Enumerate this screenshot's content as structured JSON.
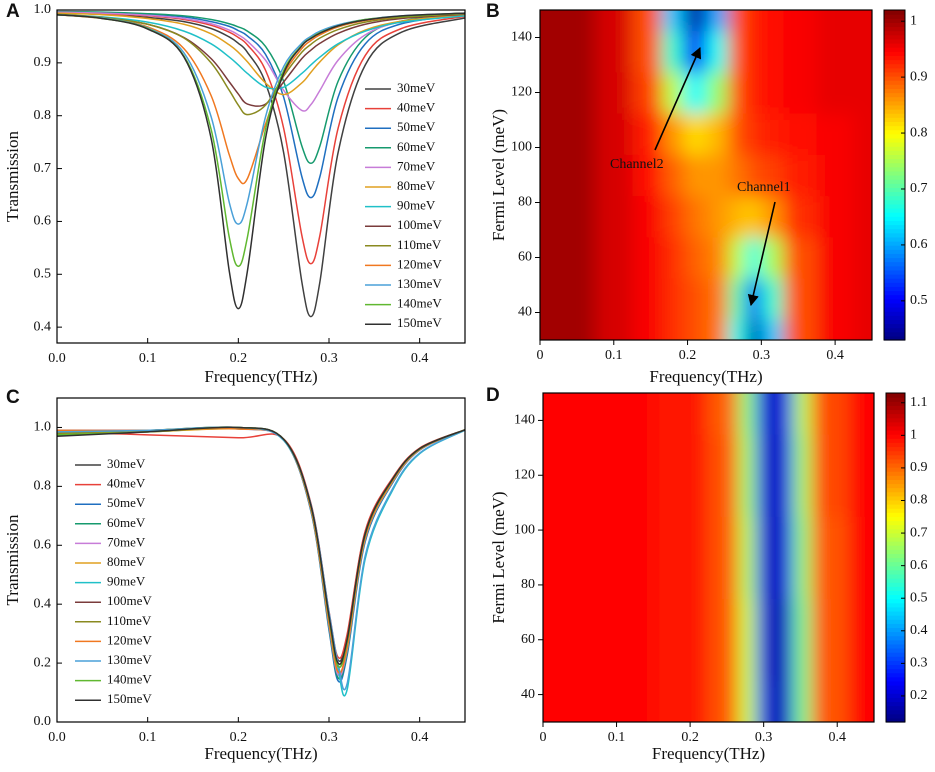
{
  "chart_data": [
    {
      "type": "line",
      "panel": "A",
      "xlabel": "Frequency(THz)",
      "ylabel": "Transmission",
      "xlim": [
        0,
        0.45
      ],
      "xticks": [
        {
          "value": 0,
          "label": "0.0"
        },
        0.1,
        0.2,
        0.3,
        0.4
      ],
      "ylim": [
        0.37,
        1.0
      ],
      "yticks": [
        0.4,
        0.5,
        0.6,
        0.7,
        0.8,
        0.9,
        {
          "value": 1,
          "label": "1.0"
        }
      ],
      "legend": "right",
      "x": [
        0,
        0.05,
        0.1,
        0.14,
        0.17,
        0.19,
        0.2,
        0.21,
        0.23,
        0.25,
        0.27,
        0.28,
        0.29,
        0.31,
        0.34,
        0.38,
        0.45
      ],
      "series": [
        {
          "name": "30meV",
          "color": "#404040",
          "values": [
            0.994,
            0.992,
            0.986,
            0.978,
            0.965,
            0.949,
            0.937,
            0.92,
            0.862,
            0.73,
            0.486,
            0.42,
            0.486,
            0.73,
            0.896,
            0.958,
            0.985
          ]
        },
        {
          "name": "40meV",
          "color": "#e8413a",
          "values": [
            0.995,
            0.993,
            0.989,
            0.982,
            0.971,
            0.958,
            0.948,
            0.934,
            0.886,
            0.776,
            0.574,
            0.52,
            0.574,
            0.776,
            0.914,
            0.965,
            0.988
          ]
        },
        {
          "name": "50meV",
          "color": "#1f6fc0",
          "values": [
            0.996,
            0.995,
            0.992,
            0.987,
            0.978,
            0.969,
            0.961,
            0.951,
            0.916,
            0.835,
            0.685,
            0.645,
            0.685,
            0.835,
            0.936,
            0.974,
            0.991
          ]
        },
        {
          "name": "60meV",
          "color": "#169a6e",
          "values": [
            0.997,
            0.996,
            0.993,
            0.989,
            0.982,
            0.974,
            0.968,
            0.96,
            0.931,
            0.865,
            0.743,
            0.71,
            0.743,
            0.865,
            0.948,
            0.979,
            0.992
          ]
        },
        {
          "name": "70meV",
          "color": "#c77cd8",
          "values": [
            0.996,
            0.994,
            0.99,
            0.984,
            0.974,
            0.962,
            0.953,
            0.941,
            0.905,
            0.848,
            0.81,
            0.821,
            0.848,
            0.905,
            0.953,
            0.978,
            0.991
          ]
        },
        {
          "name": "80meV",
          "color": "#e0a020",
          "values": [
            0.994,
            0.991,
            0.984,
            0.973,
            0.955,
            0.934,
            0.92,
            0.902,
            0.862,
            0.84,
            0.862,
            0.882,
            0.902,
            0.934,
            0.962,
            0.979,
            0.991
          ]
        },
        {
          "name": "90meV",
          "color": "#20c0c8",
          "values": [
            0.991,
            0.987,
            0.977,
            0.96,
            0.936,
            0.911,
            0.896,
            0.88,
            0.854,
            0.854,
            0.88,
            0.896,
            0.911,
            0.936,
            0.96,
            0.977,
            0.989
          ]
        },
        {
          "name": "100meV",
          "color": "#7a3b3b",
          "values": [
            0.991,
            0.985,
            0.973,
            0.948,
            0.908,
            0.864,
            0.841,
            0.822,
            0.822,
            0.864,
            0.908,
            0.924,
            0.937,
            0.956,
            0.973,
            0.984,
            0.992
          ]
        },
        {
          "name": "110meV",
          "color": "#8a8a20",
          "values": [
            0.992,
            0.986,
            0.973,
            0.947,
            0.9,
            0.848,
            0.82,
            0.802,
            0.82,
            0.875,
            0.92,
            0.935,
            0.947,
            0.963,
            0.977,
            0.986,
            0.993
          ]
        },
        {
          "name": "120meV",
          "color": "#f07820",
          "values": [
            0.991,
            0.984,
            0.968,
            0.927,
            0.838,
            0.726,
            0.681,
            0.681,
            0.784,
            0.878,
            0.927,
            0.942,
            0.953,
            0.968,
            0.98,
            0.988,
            0.994
          ]
        },
        {
          "name": "130meV",
          "color": "#4aa0d8",
          "values": [
            0.991,
            0.985,
            0.966,
            0.919,
            0.798,
            0.636,
            0.595,
            0.636,
            0.798,
            0.893,
            0.937,
            0.95,
            0.96,
            0.972,
            0.982,
            0.989,
            0.994
          ]
        },
        {
          "name": "140meV",
          "color": "#60b830",
          "values": [
            0.991,
            0.984,
            0.965,
            0.913,
            0.774,
            0.57,
            0.515,
            0.57,
            0.774,
            0.885,
            0.933,
            0.947,
            0.957,
            0.97,
            0.982,
            0.988,
            0.994
          ]
        },
        {
          "name": "150meV",
          "color": "#303030",
          "values": [
            0.991,
            0.984,
            0.964,
            0.911,
            0.757,
            0.506,
            0.435,
            0.506,
            0.757,
            0.88,
            0.932,
            0.946,
            0.956,
            0.97,
            0.981,
            0.989,
            0.994
          ]
        }
      ]
    },
    {
      "type": "heatmap",
      "panel": "B",
      "xlabel": "Frequency(THz)",
      "ylabel": "Fermi Level (meV)",
      "xlim": [
        0,
        0.45
      ],
      "xticks": [
        0,
        0.1,
        0.2,
        0.3,
        0.4
      ],
      "ylim": [
        30,
        150
      ],
      "yticks": [
        40,
        60,
        80,
        100,
        120,
        140
      ],
      "colormap": "jet",
      "zlim": [
        0.43,
        1.02
      ],
      "zticks": [
        0.5,
        0.6,
        0.7,
        0.8,
        0.9,
        1
      ],
      "annotations": [
        "Channel2",
        "Channel1"
      ],
      "x": [
        0,
        0.05,
        0.1,
        0.15,
        0.18,
        0.21,
        0.24,
        0.27,
        0.29,
        0.31,
        0.35,
        0.4,
        0.45
      ],
      "y": [
        30,
        45,
        60,
        75,
        90,
        105,
        120,
        135,
        150
      ],
      "z": [
        [
          1.0,
          1.0,
          0.97,
          0.95,
          0.92,
          0.9,
          0.88,
          0.66,
          0.45,
          0.62,
          0.9,
          0.95,
          0.96
        ],
        [
          1.0,
          1.0,
          0.97,
          0.95,
          0.92,
          0.9,
          0.88,
          0.7,
          0.52,
          0.68,
          0.9,
          0.95,
          0.96
        ],
        [
          1.0,
          1.0,
          0.97,
          0.95,
          0.92,
          0.89,
          0.87,
          0.76,
          0.66,
          0.75,
          0.9,
          0.95,
          0.96
        ],
        [
          1.0,
          1.0,
          0.97,
          0.95,
          0.91,
          0.88,
          0.86,
          0.84,
          0.83,
          0.86,
          0.92,
          0.95,
          0.96
        ],
        [
          1.0,
          1.0,
          0.97,
          0.94,
          0.89,
          0.86,
          0.86,
          0.88,
          0.9,
          0.91,
          0.93,
          0.95,
          0.96
        ],
        [
          1.0,
          1.0,
          0.97,
          0.93,
          0.86,
          0.82,
          0.84,
          0.9,
          0.92,
          0.93,
          0.94,
          0.95,
          0.96
        ],
        [
          1.0,
          1.0,
          0.97,
          0.91,
          0.76,
          0.65,
          0.74,
          0.9,
          0.93,
          0.94,
          0.95,
          0.96,
          0.96
        ],
        [
          1.0,
          1.0,
          0.97,
          0.9,
          0.68,
          0.5,
          0.66,
          0.9,
          0.93,
          0.94,
          0.95,
          0.96,
          0.96
        ],
        [
          1.0,
          1.0,
          0.97,
          0.9,
          0.62,
          0.45,
          0.6,
          0.9,
          0.93,
          0.94,
          0.95,
          0.96,
          0.96
        ]
      ]
    },
    {
      "type": "line",
      "panel": "C",
      "xlabel": "Frequency(THz)",
      "ylabel": "Transmission",
      "xlim": [
        0,
        0.45
      ],
      "xticks": [
        {
          "value": 0,
          "label": "0.0"
        },
        0.1,
        0.2,
        0.3,
        0.4
      ],
      "ylim": [
        0,
        1.1
      ],
      "yticks": [
        {
          "value": 0,
          "label": "0.0"
        },
        0.2,
        0.4,
        0.6,
        0.8,
        {
          "value": 1,
          "label": "1.0"
        }
      ],
      "legend": "left",
      "x": [
        0,
        0.1,
        0.2,
        0.25,
        0.28,
        0.3,
        0.31,
        0.32,
        0.34,
        0.37,
        0.4,
        0.45
      ],
      "series": [
        {
          "name": "30meV",
          "color": "#404040",
          "values": [
            0.99,
            0.99,
            1.0,
            0.96,
            0.739,
            0.368,
            0.21,
            0.289,
            0.645,
            0.826,
            0.929,
            0.992
          ]
        },
        {
          "name": "40meV",
          "color": "#e8413a",
          "values": [
            0.985,
            0.975,
            0.965,
            0.961,
            0.743,
            0.376,
            0.22,
            0.298,
            0.649,
            0.828,
            0.93,
            0.992
          ]
        },
        {
          "name": "50meV",
          "color": "#1f6fc0",
          "values": [
            0.99,
            0.99,
            0.995,
            0.957,
            0.716,
            0.312,
            0.14,
            0.226,
            0.613,
            0.811,
            0.923,
            0.991
          ]
        },
        {
          "name": "60meV",
          "color": "#169a6e",
          "values": [
            0.975,
            0.985,
            0.995,
            0.958,
            0.72,
            0.32,
            0.15,
            0.235,
            0.618,
            0.813,
            0.924,
            0.992
          ]
        },
        {
          "name": "70meV",
          "color": "#c77cd8",
          "values": [
            0.99,
            0.99,
            0.995,
            0.958,
            0.723,
            0.328,
            0.16,
            0.244,
            0.622,
            0.815,
            0.924,
            0.992
          ]
        },
        {
          "name": "80meV",
          "color": "#e0a020",
          "values": [
            0.98,
            0.985,
            0.995,
            0.959,
            0.726,
            0.336,
            0.17,
            0.253,
            0.627,
            0.817,
            0.925,
            0.992
          ]
        },
        {
          "name": "90meV",
          "color": "#20c0c8",
          "values": [
            0.985,
            0.99,
            1.0,
            0.956,
            0.733,
            0.359,
            0.181,
            0.11,
            0.555,
            0.786,
            0.911,
            0.991
          ]
        },
        {
          "name": "100meV",
          "color": "#7a3b3b",
          "values": [
            0.99,
            0.99,
            1.0,
            0.96,
            0.733,
            0.352,
            0.19,
            0.271,
            0.636,
            0.822,
            0.927,
            0.992
          ]
        },
        {
          "name": "110meV",
          "color": "#8a8a20",
          "values": [
            0.98,
            0.99,
            1.0,
            0.96,
            0.736,
            0.36,
            0.2,
            0.28,
            0.64,
            0.824,
            0.928,
            0.992
          ]
        },
        {
          "name": "120meV",
          "color": "#f07820",
          "values": [
            0.99,
            0.99,
            0.995,
            0.959,
            0.726,
            0.336,
            0.17,
            0.253,
            0.627,
            0.817,
            0.925,
            0.992
          ]
        },
        {
          "name": "130meV",
          "color": "#4aa0d8",
          "values": [
            0.985,
            0.99,
            1.0,
            0.957,
            0.739,
            0.374,
            0.2,
            0.13,
            0.565,
            0.791,
            0.913,
            0.991
          ]
        },
        {
          "name": "140meV",
          "color": "#60b830",
          "values": [
            0.975,
            0.985,
            1.0,
            0.96,
            0.733,
            0.352,
            0.19,
            0.271,
            0.636,
            0.822,
            0.927,
            0.992
          ]
        },
        {
          "name": "150meV",
          "color": "#303030",
          "values": [
            0.97,
            0.985,
            1.0,
            0.96,
            0.736,
            0.36,
            0.2,
            0.28,
            0.64,
            0.824,
            0.928,
            0.992
          ]
        }
      ]
    },
    {
      "type": "heatmap",
      "panel": "D",
      "xlabel": "Frequency(THz)",
      "ylabel": "Fermi Level (meV)",
      "xlim": [
        0,
        0.45
      ],
      "xticks": [
        0,
        0.1,
        0.2,
        0.3,
        0.4
      ],
      "ylim": [
        30,
        150
      ],
      "yticks": [
        40,
        60,
        80,
        100,
        120,
        140
      ],
      "colormap": "jet",
      "zlim": [
        0.12,
        1.13
      ],
      "zticks": [
        0.2,
        0.3,
        0.4,
        0.5,
        0.6,
        0.7,
        0.8,
        0.9,
        1,
        1.1
      ],
      "x": [
        0,
        0.1,
        0.2,
        0.25,
        0.28,
        0.3,
        0.31,
        0.32,
        0.33,
        0.35,
        0.38,
        0.45
      ],
      "y": [
        30,
        60,
        90,
        120,
        150
      ],
      "z": [
        [
          1.0,
          1.0,
          0.98,
          0.92,
          0.7,
          0.32,
          0.16,
          0.13,
          0.22,
          0.62,
          0.92,
          1.0
        ],
        [
          1.0,
          1.0,
          0.98,
          0.92,
          0.7,
          0.3,
          0.14,
          0.13,
          0.22,
          0.62,
          0.92,
          1.0
        ],
        [
          1.0,
          1.0,
          0.98,
          0.92,
          0.68,
          0.28,
          0.14,
          0.15,
          0.25,
          0.64,
          0.92,
          1.0
        ],
        [
          1.0,
          1.0,
          0.98,
          0.92,
          0.66,
          0.26,
          0.14,
          0.16,
          0.28,
          0.66,
          0.93,
          1.0
        ],
        [
          1.0,
          1.0,
          0.98,
          0.91,
          0.64,
          0.25,
          0.14,
          0.18,
          0.3,
          0.68,
          0.93,
          1.0
        ]
      ]
    }
  ]
}
